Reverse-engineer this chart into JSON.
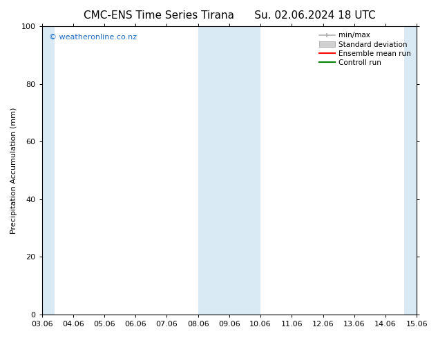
{
  "title_left": "CMC-ENS Time Series Tirana",
  "title_right": "Su. 02.06.2024 18 UTC",
  "ylabel": "Precipitation Accumulation (mm)",
  "xlim_min": 0,
  "xlim_max": 12,
  "ylim_min": 0,
  "ylim_max": 100,
  "xtick_labels": [
    "03.06",
    "04.06",
    "05.06",
    "06.06",
    "07.06",
    "08.06",
    "09.06",
    "10.06",
    "11.06",
    "12.06",
    "13.06",
    "14.06",
    "15.06"
  ],
  "ytick_values": [
    0,
    20,
    40,
    60,
    80,
    100
  ],
  "watermark_text": "© weatheronline.co.nz",
  "watermark_color": "#1a6cc4",
  "bg_color": "#ffffff",
  "shaded_color": "#daeaf5",
  "shaded_regions": [
    {
      "xmin": 0.0,
      "xmax": 0.4
    },
    {
      "xmin": 5.0,
      "xmax": 7.0
    },
    {
      "xmin": 11.6,
      "xmax": 12.0
    }
  ],
  "legend_entries": [
    {
      "label": "min/max",
      "color": "#b0b0b0",
      "style": "line_with_cap"
    },
    {
      "label": "Standard deviation",
      "color": "#d0d0d0",
      "style": "filled"
    },
    {
      "label": "Ensemble mean run",
      "color": "#ff0000",
      "style": "line"
    },
    {
      "label": "Controll run",
      "color": "#008000",
      "style": "line"
    }
  ],
  "font_size_title": 11,
  "font_size_axis": 8,
  "font_size_legend": 7.5,
  "font_size_watermark": 8
}
